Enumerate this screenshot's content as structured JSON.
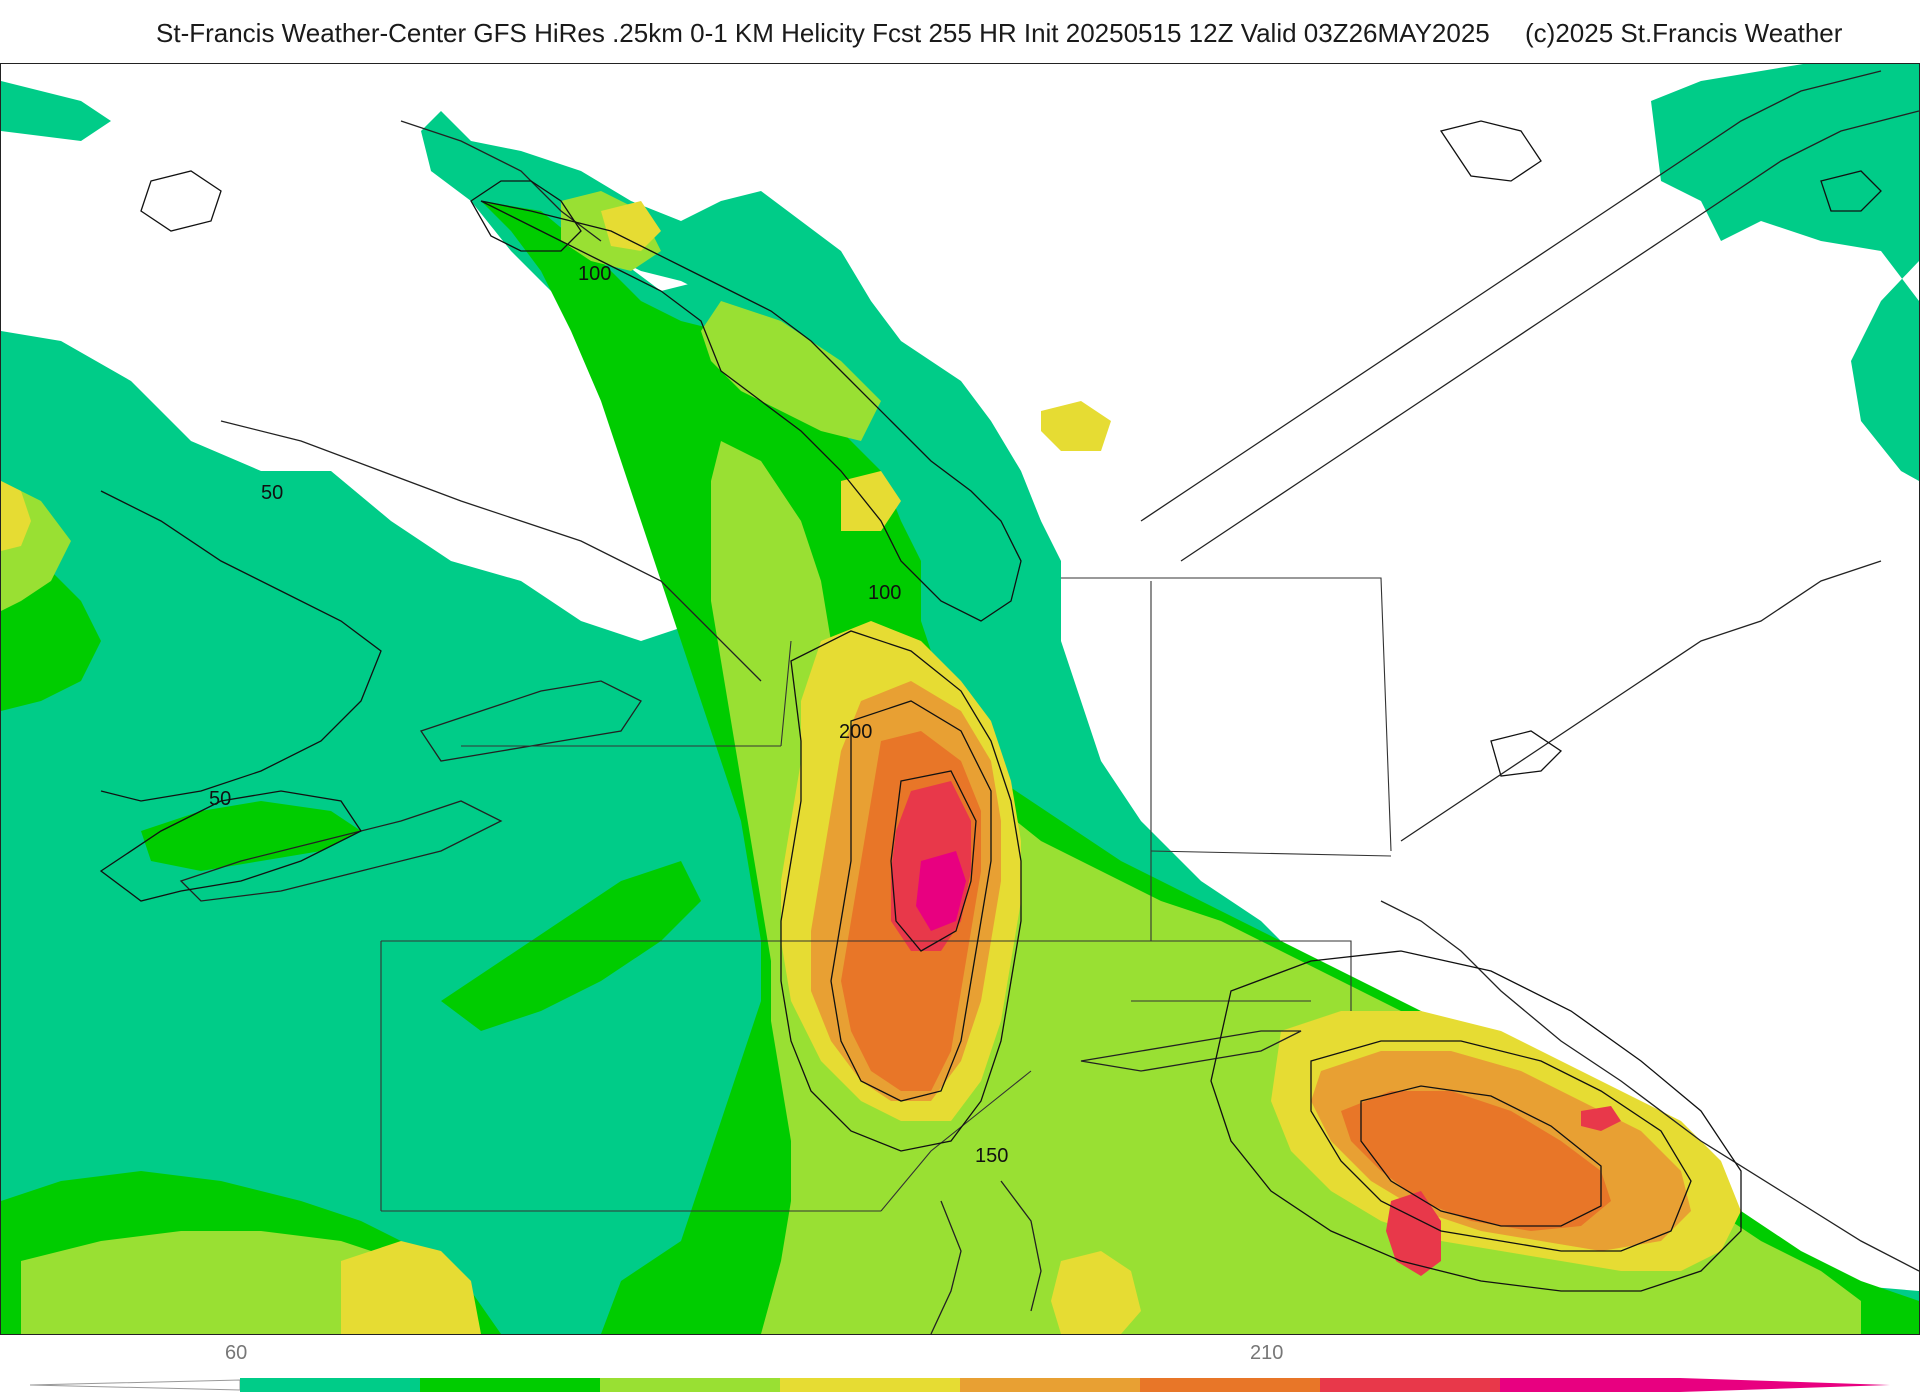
{
  "header": {
    "title": "St-Francis Weather-Center GFS HiRes .25km 0-1 KM Helicity Fcst 255 HR Init 20250515 12Z  Valid 03Z26MAY2025",
    "copyright": "(c)2025 St.Francis Weather"
  },
  "contour_labels": {
    "l100_north": "100",
    "l50_west": "50",
    "l100_center": "100",
    "l200": "200",
    "l50_southwest": "50",
    "l150": "150"
  },
  "colorbar": {
    "tick_low": "60",
    "tick_mid": "210",
    "colors": [
      "#00cc88",
      "#00cc00",
      "#99e033",
      "#e6dc33",
      "#e8a033",
      "#e87628",
      "#e8384a",
      "#e80080"
    ]
  },
  "field_colors": {
    "c60": "#00cc88",
    "c90": "#00cc00",
    "c120": "#99e033",
    "c150": "#e6dc33",
    "c180": "#e8a033",
    "c210": "#e87628",
    "c240": "#e8384a",
    "c270": "#e80080"
  }
}
